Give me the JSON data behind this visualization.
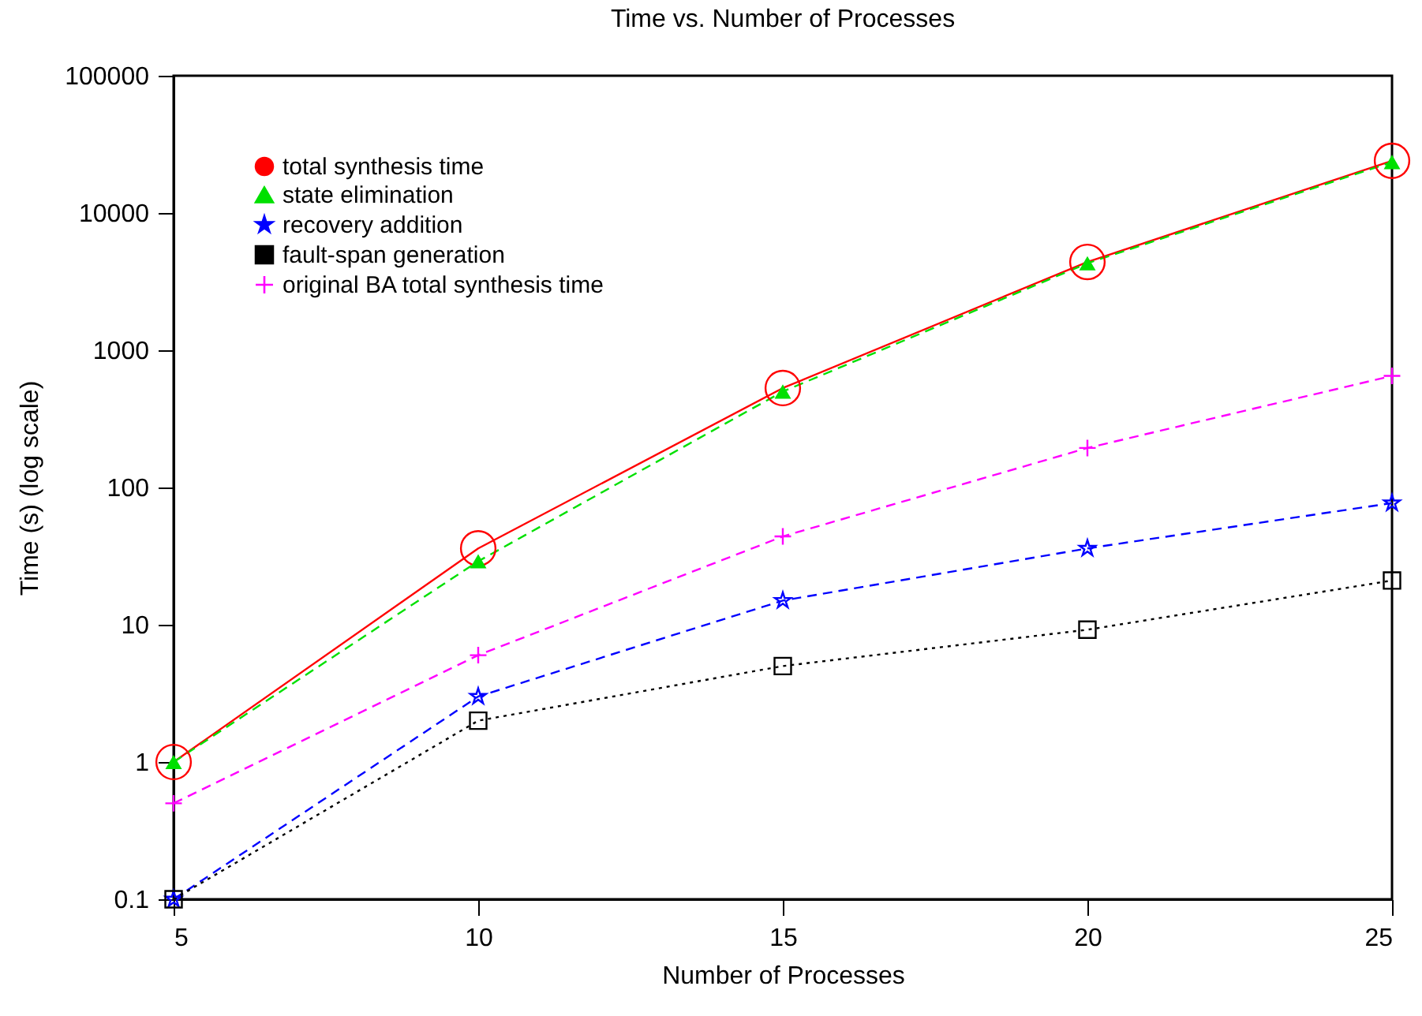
{
  "chart_data": {
    "type": "line",
    "title": "Time vs. Number of Processes",
    "xlabel": "Number of Processes",
    "ylabel": "Time (s) (log scale)",
    "x": [
      5,
      10,
      15,
      20,
      25
    ],
    "xlim": [
      5,
      25
    ],
    "xticks": [
      5,
      10,
      15,
      20,
      25
    ],
    "ylim": [
      0.1,
      100000
    ],
    "yticks": [
      0.1,
      1,
      10,
      100,
      1000,
      10000,
      100000
    ],
    "log": "y",
    "grid": false,
    "legend": "top left",
    "series": [
      {
        "name": "total synthesis time",
        "color": "#ff0000",
        "marker": "circle",
        "line_style": "solid",
        "values": [
          1,
          36,
          530,
          4400,
          24000
        ]
      },
      {
        "name": "state elimination",
        "color": "#00e000",
        "marker": "triangle",
        "line_style": "dashed",
        "values": [
          1,
          29,
          500,
          4300,
          23500
        ]
      },
      {
        "name": "recovery addition",
        "color": "#0000ff",
        "marker": "star",
        "line_style": "dashed",
        "values": [
          0.1,
          3,
          15,
          36,
          77
        ]
      },
      {
        "name": "fault-span generation",
        "color": "#000000",
        "marker": "square",
        "line_style": "dotted",
        "values": [
          0.1,
          2,
          5,
          9.2,
          21
        ]
      },
      {
        "name": "original BA total synthesis time",
        "color": "#ff00ff",
        "marker": "cross",
        "line_style": "dashed",
        "values": [
          0.5,
          6,
          44,
          194,
          650
        ]
      }
    ]
  }
}
